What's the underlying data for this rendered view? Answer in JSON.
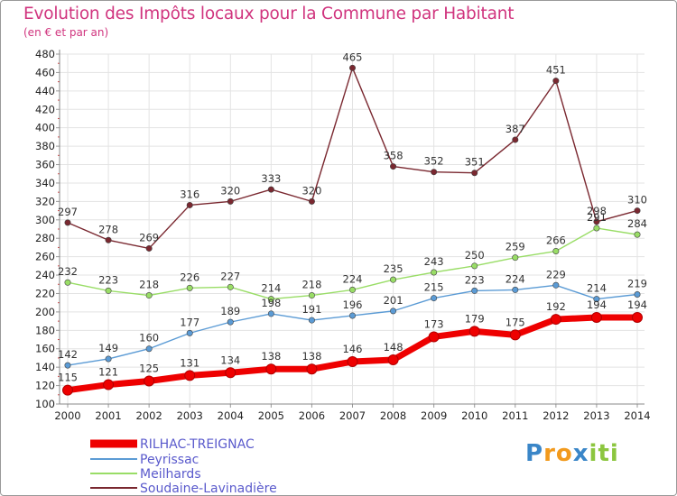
{
  "chart_data": {
    "type": "line",
    "title": "Evolution des Impôts locaux pour la Commune par Habitant",
    "subtitle": "(en € et par an)",
    "xlabel": "",
    "ylabel": "",
    "ylim": [
      100,
      480
    ],
    "ytick_step": 20,
    "grid": true,
    "legend_position": "bottom-left",
    "categories": [
      "2000",
      "2001",
      "2002",
      "2003",
      "2004",
      "2005",
      "2006",
      "2007",
      "2008",
      "2009",
      "2010",
      "2011",
      "2012",
      "2013",
      "2014"
    ],
    "series": [
      {
        "name": "Soudaine-Lavinadière",
        "color": "#7a2830",
        "values": [
          297,
          278,
          269,
          316,
          320,
          333,
          320,
          465,
          358,
          352,
          351,
          387,
          451,
          298,
          310
        ]
      },
      {
        "name": "Meilhards",
        "color": "#99dd66",
        "values": [
          232,
          223,
          218,
          226,
          227,
          214,
          218,
          224,
          235,
          243,
          250,
          259,
          266,
          291,
          284
        ]
      },
      {
        "name": "Peyrissac",
        "color": "#5b9bd5",
        "values": [
          142,
          149,
          160,
          177,
          189,
          198,
          191,
          196,
          201,
          215,
          223,
          224,
          229,
          214,
          219
        ]
      },
      {
        "name": "RILHAC-TREIGNAC",
        "color": "#ee0000",
        "values": [
          115,
          121,
          125,
          131,
          134,
          138,
          138,
          146,
          148,
          173,
          179,
          175,
          192,
          194,
          194
        ]
      }
    ],
    "legend": [
      "RILHAC-TREIGNAC",
      "Peyrissac",
      "Meilhards",
      "Soudaine-Lavinadière"
    ]
  },
  "logo": {
    "text": "Proxiti",
    "letters": [
      "P",
      "r",
      "o",
      "x",
      "i",
      "t",
      "i"
    ],
    "colors": [
      "#3a86c8",
      "#f29a1d",
      "#f29a1d",
      "#3a86c8",
      "#8cc63f",
      "#8cc63f",
      "#8cc63f"
    ]
  }
}
